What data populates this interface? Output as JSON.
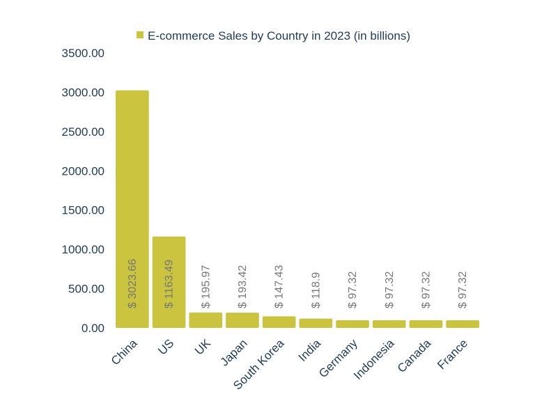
{
  "chart_data": {
    "type": "bar",
    "title": "",
    "xlabel": "",
    "ylabel": "",
    "series": [
      {
        "name": "E-commerce Sales by Country in 2023 (in billions)",
        "color": "#cbc43f",
        "values": [
          3023.66,
          1163.49,
          195.97,
          193.42,
          147.43,
          118.9,
          97.32,
          97.32,
          97.32,
          97.32
        ]
      }
    ],
    "categories": [
      "China",
      "US",
      "UK",
      "Japan",
      "South Korea",
      "India",
      "Germany",
      "Indonesia",
      "Canada",
      "France"
    ],
    "data_labels": [
      "$ 3023.66",
      "$ 1163.49",
      "$ 195.97",
      "$ 193.42",
      "$ 147.43",
      "$ 118.9",
      "$ 97.32",
      "$ 97.32",
      "$ 97.32",
      "$ 97.32"
    ],
    "y_ticks": [
      "0.00",
      "500.00",
      "1000.00",
      "1500.00",
      "2000.00",
      "2500.00",
      "3000.00",
      "3500.00"
    ],
    "ylim": [
      0,
      3500
    ],
    "grid": false,
    "legend": "top-center"
  }
}
